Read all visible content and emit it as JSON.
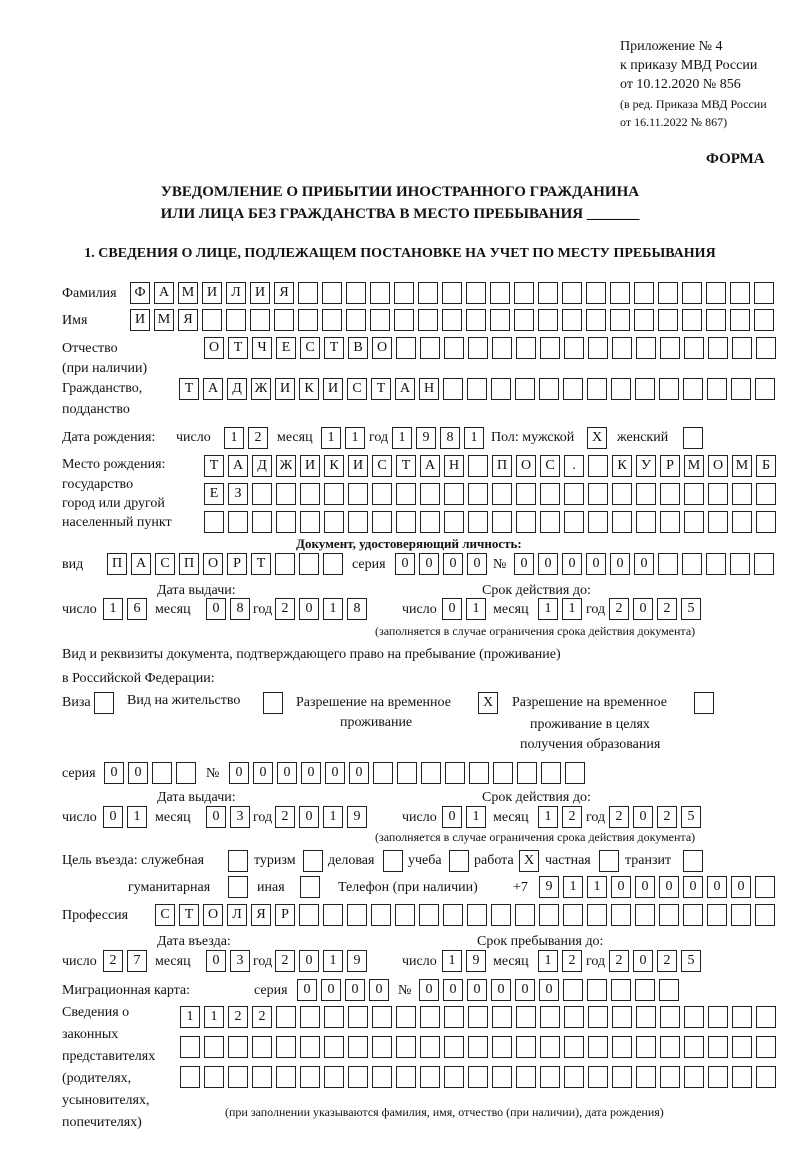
{
  "header": {
    "appendix": "Приложение № 4",
    "order": "к приказу МВД России",
    "order_date": "от 10.12.2020 № 856",
    "revision1": "(в ред. Приказа МВД России",
    "revision2": "от 16.11.2022 № 867)",
    "form_label": "ФОРМА",
    "title1": "УВЕДОМЛЕНИЕ О ПРИБЫТИИ ИНОСТРАННОГО ГРАЖДАНИНА",
    "title2": "ИЛИ ЛИЦА БЕЗ ГРАЖДАНСТВА В МЕСТО ПРЕБЫВАНИЯ _______",
    "section1": "1. СВЕДЕНИЯ О ЛИЦЕ, ПОДЛЕЖАЩЕМ ПОСТАНОВКЕ НА УЧЕТ ПО МЕСТУ ПРЕБЫВАНИЯ"
  },
  "labels": {
    "surname": "Фамилия",
    "name": "Имя",
    "patronymic": "Отчество",
    "patronymic_note": "(при наличии)",
    "citizenship": "Гражданство,",
    "citizenship2": "подданство",
    "birth_date": "Дата рождения:",
    "day": "число",
    "month": "месяц",
    "year": "год",
    "sex": "Пол: мужской",
    "female": "женский",
    "birth_place": "Место рождения:",
    "state": "государство",
    "city": "город или другой",
    "locality": "населенный пункт",
    "id_doc": "Документ, удостоверяющий личность:",
    "kind": "вид",
    "series": "серия",
    "number": "№",
    "issue_date": "Дата выдачи:",
    "valid_until": "Срок действия до:",
    "validity_note": "(заполняется в случае ограничения срока действия документа)",
    "stay_doc1": "Вид и реквизиты документа, подтверждающего право на пребывание (проживание)",
    "stay_doc2": "в Российской Федерации:",
    "visa": "Виза",
    "residence": "Вид на жительство",
    "temp_res1": "Разрешение на временное",
    "temp_res2": "проживание",
    "temp_edu1": "Разрешение на временное",
    "temp_edu2": "проживание в целях",
    "temp_edu3": "получения образования",
    "purpose": "Цель въезда: служебная",
    "tourism": "туризм",
    "business": "деловая",
    "study": "учеба",
    "work": "работа",
    "private": "частная",
    "transit": "транзит",
    "humanitarian": "гуманитарная",
    "other": "иная",
    "phone": "Телефон (при наличии)",
    "phone_prefix": "+7",
    "profession": "Профессия",
    "entry_date": "Дата въезда:",
    "stay_until": "Срок пребывания до:",
    "migration_card": "Миграционная карта:",
    "rep1": "Сведения о",
    "rep2": "законных",
    "rep3": "представителях",
    "rep4": "(родителях,",
    "rep5": "усыновителях,",
    "rep6": "попечителях)",
    "rep_note": "(при заполнении указываются фамилия, имя, отчество (при наличии), дата рождения)"
  },
  "person": {
    "surname": "ФАМИЛИЯ",
    "name": "ИМЯ",
    "patronymic": "ОТЧЕСТВО",
    "citizenship": "ТАДЖИКИСТАН",
    "birth_day": "12",
    "birth_month": "11",
    "birth_year": "1981",
    "male": "X",
    "female": "",
    "birth_place1": "ТАДЖИКИСТАН ПОС. КУРМОМБ",
    "birth_place2": "ЕЗ",
    "birth_place3": ""
  },
  "id_document": {
    "kind": "ПАСПОРТ",
    "series": "0000",
    "number": "000000",
    "issue_day": "16",
    "issue_month": "08",
    "issue_year": "2018",
    "valid_day": "01",
    "valid_month": "11",
    "valid_year": "2025"
  },
  "stay_document": {
    "visa": "",
    "residence": "",
    "temp_residence": "X",
    "temp_residence_edu": "",
    "series": "00",
    "number": "000000",
    "issue_day": "01",
    "issue_month": "03",
    "issue_year": "2019",
    "valid_day": "01",
    "valid_month": "12",
    "valid_year": "2025"
  },
  "purpose": {
    "official": "",
    "tourism": "",
    "business": "",
    "study": "",
    "work": "X",
    "private": "",
    "transit": "",
    "humanitarian": "",
    "other": ""
  },
  "phone": "911000000",
  "profession": "СТОЛЯР",
  "entry": {
    "day": "27",
    "month": "03",
    "year": "2019"
  },
  "stay_until": {
    "day": "19",
    "month": "12",
    "year": "2025"
  },
  "migration_card": {
    "series": "0000",
    "number": "000000"
  },
  "representatives": {
    "line1": "1122",
    "line2": "",
    "line3": ""
  }
}
